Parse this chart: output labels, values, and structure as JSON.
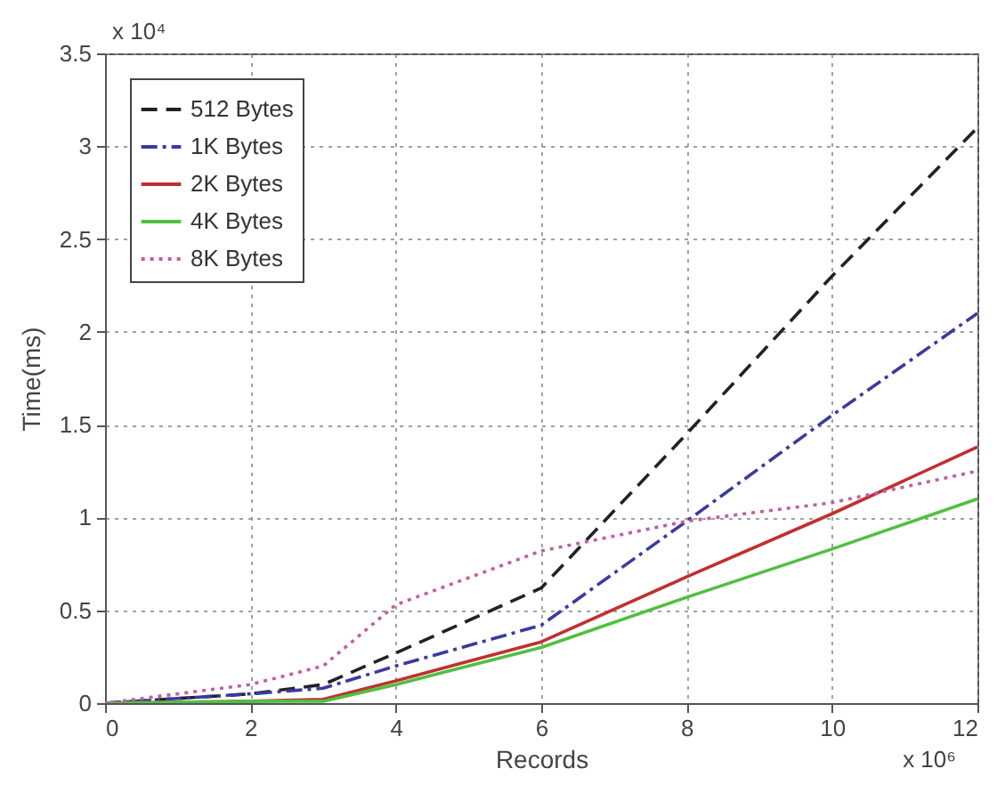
{
  "chart_data": {
    "type": "line",
    "xlabel": "Records",
    "ylabel": "Time(ms)",
    "x": [
      0,
      2,
      3,
      4,
      6,
      8,
      10,
      12
    ],
    "series": [
      {
        "name": "512 Bytes",
        "color": "#222222",
        "line_style": "dashed",
        "values": [
          0,
          0.05,
          0.1,
          0.27,
          0.62,
          1.45,
          2.3,
          3.1
        ]
      },
      {
        "name": "1K Bytes",
        "color": "#3a3aa0",
        "line_style": "dashdot",
        "values": [
          0,
          0.05,
          0.08,
          0.2,
          0.42,
          0.98,
          1.55,
          2.1
        ]
      },
      {
        "name": "2K Bytes",
        "color": "#c03030",
        "line_style": "solid",
        "values": [
          0,
          0.01,
          0.02,
          0.12,
          0.33,
          0.68,
          1.02,
          1.38
        ]
      },
      {
        "name": "4K Bytes",
        "color": "#50c040",
        "line_style": "solid",
        "values": [
          0,
          0.01,
          0.01,
          0.1,
          0.3,
          0.57,
          0.83,
          1.1
        ]
      },
      {
        "name": "8K Bytes",
        "color": "#c060a0",
        "line_style": "dotted",
        "values": [
          0,
          0.1,
          0.2,
          0.53,
          0.82,
          0.98,
          1.08,
          1.25
        ]
      }
    ],
    "xlim": [
      0,
      12
    ],
    "xticks": [
      0,
      2,
      4,
      6,
      8,
      10,
      12
    ],
    "ylim": [
      0,
      3.5
    ],
    "yticks": [
      0,
      0.5,
      1,
      1.5,
      2,
      2.5,
      3,
      3.5
    ],
    "annotations": [
      "x 10⁴",
      "x 10⁶"
    ],
    "grid": true,
    "legend": "top left",
    "marker": "none"
  }
}
